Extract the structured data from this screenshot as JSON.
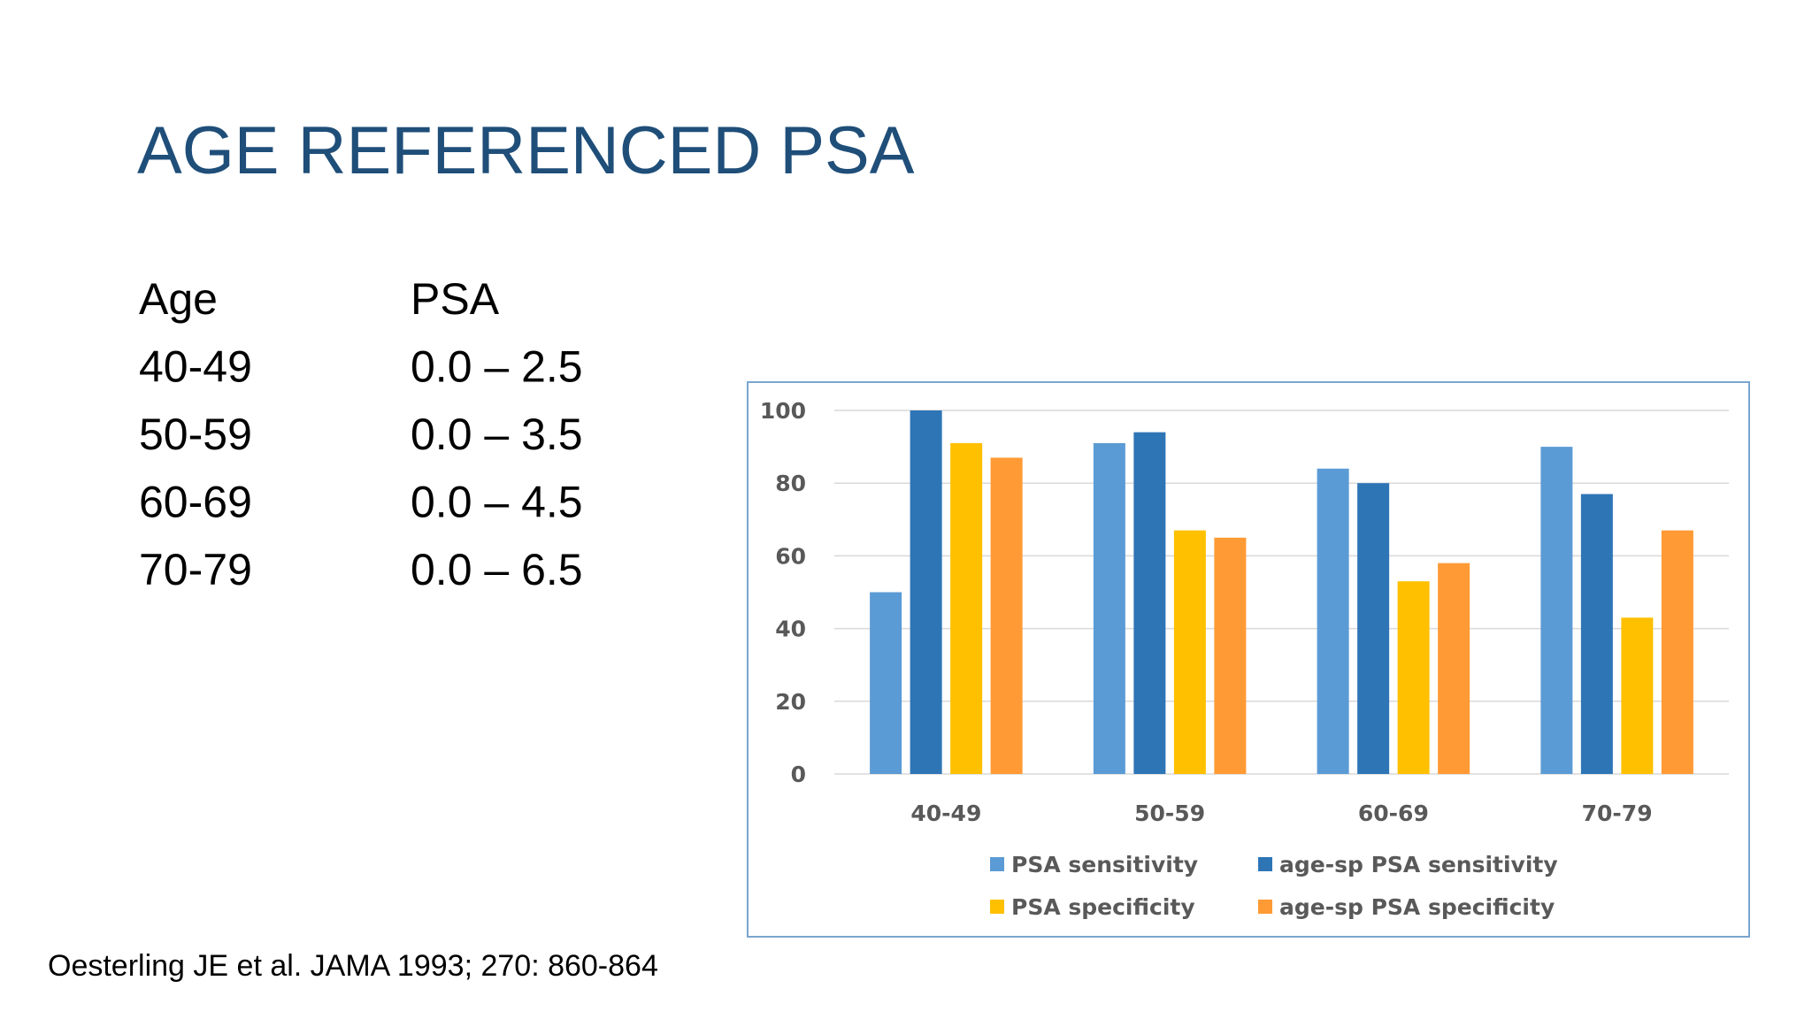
{
  "title": "AGE REFERENCED PSA",
  "table": {
    "header": [
      "Age",
      "PSA"
    ],
    "rows": [
      [
        "40-49",
        "0.0 – 2.5"
      ],
      [
        "50-59",
        "0.0 – 3.5"
      ],
      [
        "60-69",
        "0.0 – 4.5"
      ],
      [
        "70-79",
        "0.0 – 6.5"
      ]
    ]
  },
  "citation": "Oesterling JE et al. JAMA 1993; 270: 860-864",
  "chart_data": {
    "type": "bar",
    "categories": [
      "40-49",
      "50-59",
      "60-69",
      "70-79"
    ],
    "series": [
      {
        "name": "PSA sensitivity",
        "color": "#5b9bd5",
        "values": [
          50,
          91,
          84,
          90
        ]
      },
      {
        "name": "age-sp PSA sensitivity",
        "color": "#2e75b6",
        "values": [
          100,
          94,
          80,
          77
        ]
      },
      {
        "name": "PSA specificity",
        "color": "#ffc000",
        "values": [
          91,
          67,
          53,
          43
        ]
      },
      {
        "name": "age-sp PSA specificity",
        "color": "#ff9a35",
        "values": [
          87,
          65,
          58,
          67
        ]
      }
    ],
    "ylim": [
      0,
      100
    ],
    "yticks": [
      0,
      20,
      40,
      60,
      80,
      100
    ],
    "grid": true,
    "legend": "bottom"
  }
}
